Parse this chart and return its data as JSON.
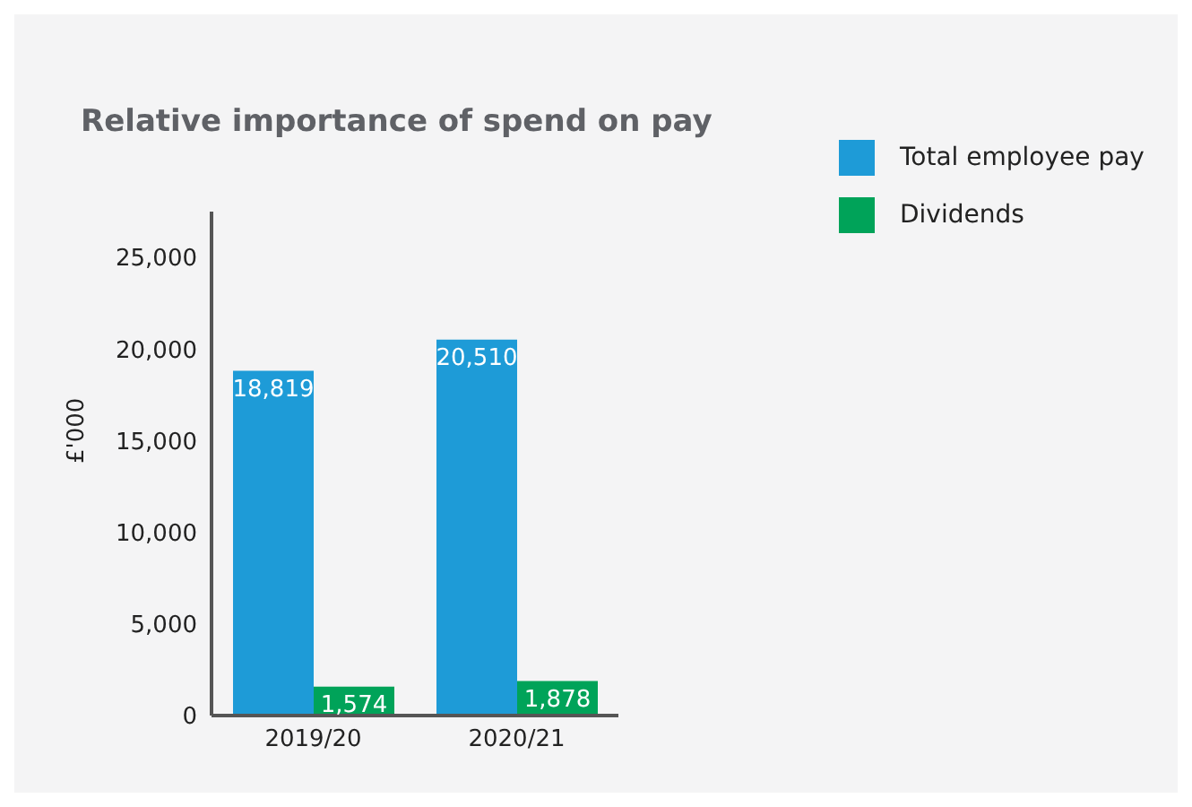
{
  "chart_data": {
    "type": "bar",
    "title": "Relative importance of spend on pay",
    "ylabel": "£'000",
    "categories": [
      "2019/20",
      "2020/21"
    ],
    "series": [
      {
        "name": "Total employee pay",
        "color": "#1e9bd7",
        "values": [
          18819,
          20510
        ],
        "value_labels": [
          "18,819",
          "20,510"
        ]
      },
      {
        "name": "Dividends",
        "color": "#00a359",
        "values": [
          1574,
          1878
        ],
        "value_labels": [
          "1,574",
          "1,878"
        ]
      }
    ],
    "ylim": [
      0,
      27500
    ],
    "yticks": [
      0,
      {
        "value": 5000,
        "label": "5,000"
      },
      {
        "value": 10000,
        "label": "10,000"
      },
      {
        "value": 15000,
        "label": "15,000"
      },
      {
        "value": 20000,
        "label": "20,000"
      },
      {
        "value": 25000,
        "label": "25,000"
      }
    ],
    "grid": false,
    "legend": "top right"
  }
}
